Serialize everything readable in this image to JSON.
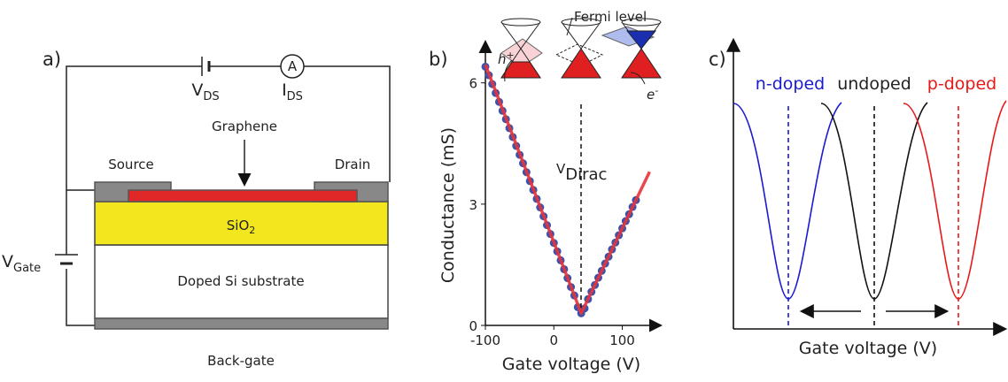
{
  "panel_a": {
    "label": "a)",
    "v_ds": {
      "main": "V",
      "sub": "DS"
    },
    "ammeter": "A",
    "i_ds": {
      "main": "I",
      "sub": "DS"
    },
    "graphene": "Graphene",
    "source": "Source",
    "drain": "Drain",
    "sio2": {
      "main": "SiO",
      "sub": "2"
    },
    "substrate": "Doped Si substrate",
    "back_gate": "Back-gate",
    "v_gate": {
      "main": "V",
      "sub": "Gate"
    }
  },
  "panel_b": {
    "label": "b)",
    "type": "scatter",
    "xlabel": "Gate voltage (V)",
    "ylabel": "Conductance (mS)",
    "x": [
      -100,
      -95,
      -90,
      -85,
      -80,
      -75,
      -70,
      -65,
      -60,
      -55,
      -50,
      -45,
      -40,
      -35,
      -30,
      -25,
      -20,
      -15,
      -10,
      -5,
      0,
      5,
      10,
      15,
      20,
      25,
      30,
      35,
      40,
      45,
      50,
      55,
      60,
      65,
      70,
      75,
      80,
      85,
      90,
      95,
      100,
      105,
      110,
      115,
      120
    ],
    "values": [
      6.4,
      6.19,
      5.97,
      5.75,
      5.53,
      5.31,
      5.1,
      4.88,
      4.66,
      4.44,
      4.22,
      4.01,
      3.79,
      3.57,
      3.35,
      3.13,
      2.92,
      2.7,
      2.48,
      2.26,
      2.04,
      1.83,
      1.61,
      1.39,
      1.17,
      0.95,
      0.74,
      0.45,
      0.3,
      0.42,
      0.65,
      0.83,
      1.0,
      1.18,
      1.35,
      1.53,
      1.7,
      1.88,
      2.05,
      2.23,
      2.4,
      2.58,
      2.75,
      2.93,
      3.1
    ],
    "fit_x": [
      -100,
      30,
      40,
      50,
      140
    ],
    "fit_values": [
      6.45,
      0.74,
      0.3,
      0.65,
      3.8
    ],
    "xlim": [
      -100,
      155
    ],
    "xticks": [
      -100,
      0,
      100
    ],
    "ylim": [
      0,
      7
    ],
    "yticks": [
      0,
      3,
      6
    ],
    "dirac": {
      "main": "V",
      "sub": "Dirac"
    },
    "fermi_level": "Fermi level",
    "hole": {
      "main": "h",
      "sup": "+"
    },
    "electron": {
      "main": "e",
      "sup": "-"
    },
    "point_color": "#3d52a8",
    "fit_color": "#e8333a"
  },
  "panel_c": {
    "label": "c)",
    "xlabel": "Gate voltage (V)",
    "n_doped": "n-doped",
    "undoped": "undoped",
    "p_doped": "p-doped"
  }
}
